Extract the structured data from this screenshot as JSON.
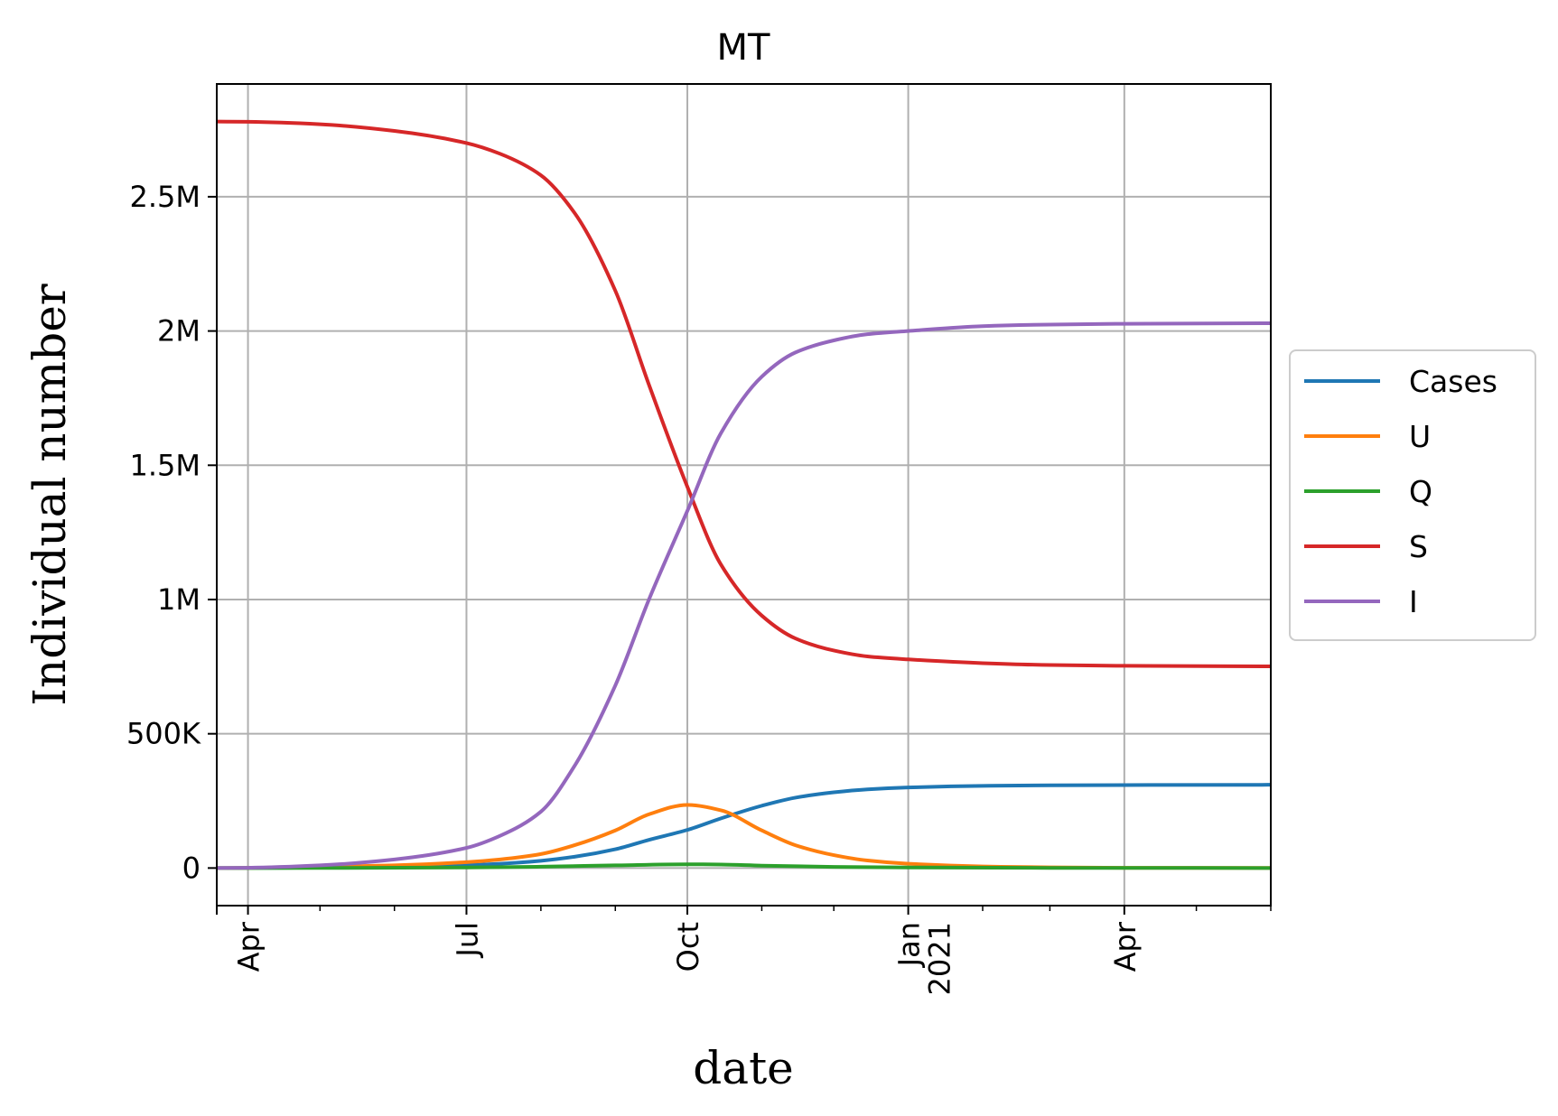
{
  "chart_data": {
    "type": "line",
    "title": "MT",
    "xlabel": "date",
    "ylabel": "Individual number",
    "x_ticks": [
      {
        "date": "2020-04-01",
        "label": "Apr",
        "year": ""
      },
      {
        "date": "2020-07-01",
        "label": "Jul",
        "year": ""
      },
      {
        "date": "2020-10-01",
        "label": "Oct",
        "year": ""
      },
      {
        "date": "2021-01-01",
        "label": "Jan",
        "year": "2021"
      },
      {
        "date": "2021-04-01",
        "label": "Apr",
        "year": ""
      }
    ],
    "x_minor_ticks": [
      "2020-05-01",
      "2020-06-01",
      "2020-08-01",
      "2020-09-01",
      "2020-11-01",
      "2020-12-01",
      "2021-02-01",
      "2021-03-01",
      "2021-05-01",
      "2021-06-01"
    ],
    "y_ticks": [
      {
        "value": 0,
        "label": "0"
      },
      {
        "value": 500000,
        "label": "500K"
      },
      {
        "value": 1000000,
        "label": "1M"
      },
      {
        "value": 1500000,
        "label": "1.5M"
      },
      {
        "value": 2000000,
        "label": "2M"
      },
      {
        "value": 2500000,
        "label": "2.5M"
      }
    ],
    "xlim": [
      "2020-03-19",
      "2021-06-01"
    ],
    "ylim": [
      -140000,
      2920000
    ],
    "grid": true,
    "legend_position": "center-right-outside",
    "series": [
      {
        "name": "Cases",
        "color": "#1f77b4",
        "points": [
          [
            "2020-03-19",
            0
          ],
          [
            "2020-04-01",
            200
          ],
          [
            "2020-05-01",
            1500
          ],
          [
            "2020-06-01",
            5000
          ],
          [
            "2020-07-01",
            11000
          ],
          [
            "2020-07-15",
            16000
          ],
          [
            "2020-08-01",
            27000
          ],
          [
            "2020-08-15",
            42000
          ],
          [
            "2020-09-01",
            70000
          ],
          [
            "2020-09-15",
            105000
          ],
          [
            "2020-10-01",
            142000
          ],
          [
            "2020-10-15",
            185000
          ],
          [
            "2020-11-01",
            232000
          ],
          [
            "2020-11-15",
            262000
          ],
          [
            "2020-12-01",
            282000
          ],
          [
            "2020-12-15",
            293000
          ],
          [
            "2021-01-01",
            300000
          ],
          [
            "2021-02-01",
            306000
          ],
          [
            "2021-03-01",
            308000
          ],
          [
            "2021-04-01",
            309000
          ],
          [
            "2021-06-01",
            310000
          ]
        ]
      },
      {
        "name": "U",
        "color": "#ff7f0e",
        "points": [
          [
            "2020-03-19",
            0
          ],
          [
            "2020-04-01",
            500
          ],
          [
            "2020-05-01",
            4000
          ],
          [
            "2020-06-01",
            10000
          ],
          [
            "2020-07-01",
            22000
          ],
          [
            "2020-07-15",
            32000
          ],
          [
            "2020-08-01",
            52000
          ],
          [
            "2020-08-15",
            85000
          ],
          [
            "2020-09-01",
            140000
          ],
          [
            "2020-09-15",
            200000
          ],
          [
            "2020-10-01",
            235000
          ],
          [
            "2020-10-15",
            215000
          ],
          [
            "2020-11-01",
            140000
          ],
          [
            "2020-11-15",
            85000
          ],
          [
            "2020-12-01",
            48000
          ],
          [
            "2020-12-15",
            28000
          ],
          [
            "2021-01-01",
            16000
          ],
          [
            "2021-02-01",
            6000
          ],
          [
            "2021-03-01",
            2500
          ],
          [
            "2021-04-01",
            1000
          ],
          [
            "2021-06-01",
            300
          ]
        ]
      },
      {
        "name": "Q",
        "color": "#2ca02c",
        "points": [
          [
            "2020-03-19",
            0
          ],
          [
            "2020-05-01",
            300
          ],
          [
            "2020-07-01",
            2000
          ],
          [
            "2020-08-01",
            5000
          ],
          [
            "2020-09-01",
            10000
          ],
          [
            "2020-10-01",
            14000
          ],
          [
            "2020-10-15",
            13000
          ],
          [
            "2020-11-01",
            9000
          ],
          [
            "2020-12-01",
            4000
          ],
          [
            "2021-01-01",
            2000
          ],
          [
            "2021-03-01",
            600
          ],
          [
            "2021-06-01",
            100
          ]
        ]
      },
      {
        "name": "S",
        "color": "#d62728",
        "points": [
          [
            "2020-03-19",
            2780000
          ],
          [
            "2020-04-01",
            2779000
          ],
          [
            "2020-05-01",
            2770000
          ],
          [
            "2020-06-01",
            2745000
          ],
          [
            "2020-07-01",
            2700000
          ],
          [
            "2020-07-15",
            2660000
          ],
          [
            "2020-08-01",
            2580000
          ],
          [
            "2020-08-15",
            2440000
          ],
          [
            "2020-09-01",
            2150000
          ],
          [
            "2020-09-15",
            1800000
          ],
          [
            "2020-10-01",
            1420000
          ],
          [
            "2020-10-15",
            1130000
          ],
          [
            "2020-11-01",
            940000
          ],
          [
            "2020-11-15",
            855000
          ],
          [
            "2020-12-01",
            810000
          ],
          [
            "2020-12-15",
            788000
          ],
          [
            "2021-01-01",
            777000
          ],
          [
            "2021-02-01",
            763000
          ],
          [
            "2021-03-01",
            756000
          ],
          [
            "2021-04-01",
            753000
          ],
          [
            "2021-06-01",
            751000
          ]
        ]
      },
      {
        "name": "I",
        "color": "#9467bd",
        "points": [
          [
            "2020-03-19",
            0
          ],
          [
            "2020-04-01",
            1000
          ],
          [
            "2020-05-01",
            10000
          ],
          [
            "2020-06-01",
            32000
          ],
          [
            "2020-07-01",
            75000
          ],
          [
            "2020-07-15",
            120000
          ],
          [
            "2020-08-01",
            210000
          ],
          [
            "2020-08-15",
            380000
          ],
          [
            "2020-09-01",
            680000
          ],
          [
            "2020-09-15",
            1000000
          ],
          [
            "2020-10-01",
            1330000
          ],
          [
            "2020-10-15",
            1620000
          ],
          [
            "2020-11-01",
            1830000
          ],
          [
            "2020-11-15",
            1920000
          ],
          [
            "2020-12-01",
            1965000
          ],
          [
            "2020-12-15",
            1988000
          ],
          [
            "2021-01-01",
            2000000
          ],
          [
            "2021-02-01",
            2018000
          ],
          [
            "2021-03-01",
            2024000
          ],
          [
            "2021-04-01",
            2027000
          ],
          [
            "2021-06-01",
            2029000
          ]
        ]
      }
    ]
  }
}
